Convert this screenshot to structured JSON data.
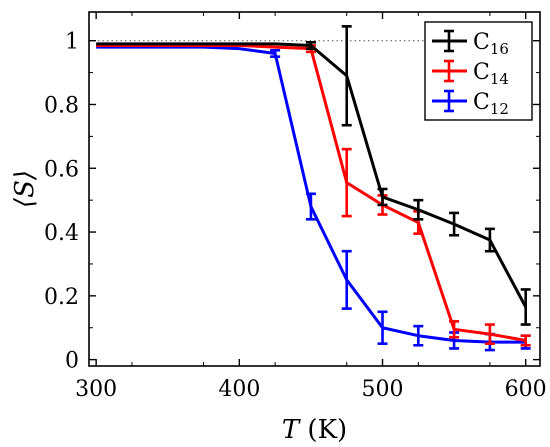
{
  "chart_data": {
    "type": "line",
    "xlabel": "T (K)",
    "ylabel": "⟨S⟩",
    "x_ticks": [
      300,
      400,
      500,
      600
    ],
    "y_ticks": [
      0,
      0.2,
      0.4,
      0.6,
      0.8,
      1
    ],
    "xlim": [
      295,
      610
    ],
    "ylim": [
      -0.02,
      1.09
    ],
    "grid": false,
    "legend_position": "top-right",
    "reference_line": {
      "y": 1.0,
      "style": "dotted"
    },
    "series": [
      {
        "name": "C16",
        "name_base": "C",
        "name_sub": "16",
        "color": "#000000",
        "x": [
          300,
          325,
          350,
          375,
          400,
          425,
          450,
          475,
          500,
          525,
          550,
          575,
          600
        ],
        "y": [
          0.99,
          0.99,
          0.99,
          0.99,
          0.99,
          0.99,
          0.985,
          0.89,
          0.51,
          0.47,
          0.425,
          0.375,
          0.165
        ],
        "err": [
          0,
          0,
          0,
          0,
          0,
          0,
          0.01,
          0.155,
          0.025,
          0.03,
          0.035,
          0.035,
          0.055
        ]
      },
      {
        "name": "C14",
        "name_base": "C",
        "name_sub": "14",
        "color": "#ff0000",
        "x": [
          300,
          325,
          350,
          375,
          400,
          425,
          450,
          475,
          500,
          525,
          550,
          575,
          600
        ],
        "y": [
          0.985,
          0.985,
          0.985,
          0.985,
          0.985,
          0.98,
          0.975,
          0.555,
          0.485,
          0.43,
          0.095,
          0.08,
          0.06
        ],
        "err": [
          0,
          0,
          0,
          0,
          0,
          0,
          0.01,
          0.105,
          0.03,
          0.035,
          0.025,
          0.03,
          0.015
        ]
      },
      {
        "name": "C12",
        "name_base": "C",
        "name_sub": "12",
        "color": "#0000ff",
        "x": [
          300,
          325,
          350,
          375,
          400,
          425,
          450,
          475,
          500,
          525,
          550,
          575,
          600
        ],
        "y": [
          0.98,
          0.98,
          0.98,
          0.98,
          0.975,
          0.96,
          0.48,
          0.25,
          0.1,
          0.075,
          0.06,
          0.055,
          0.055
        ],
        "err": [
          0,
          0,
          0,
          0,
          0,
          0.01,
          0.04,
          0.09,
          0.05,
          0.03,
          0.025,
          0.025,
          0.02
        ]
      }
    ]
  }
}
